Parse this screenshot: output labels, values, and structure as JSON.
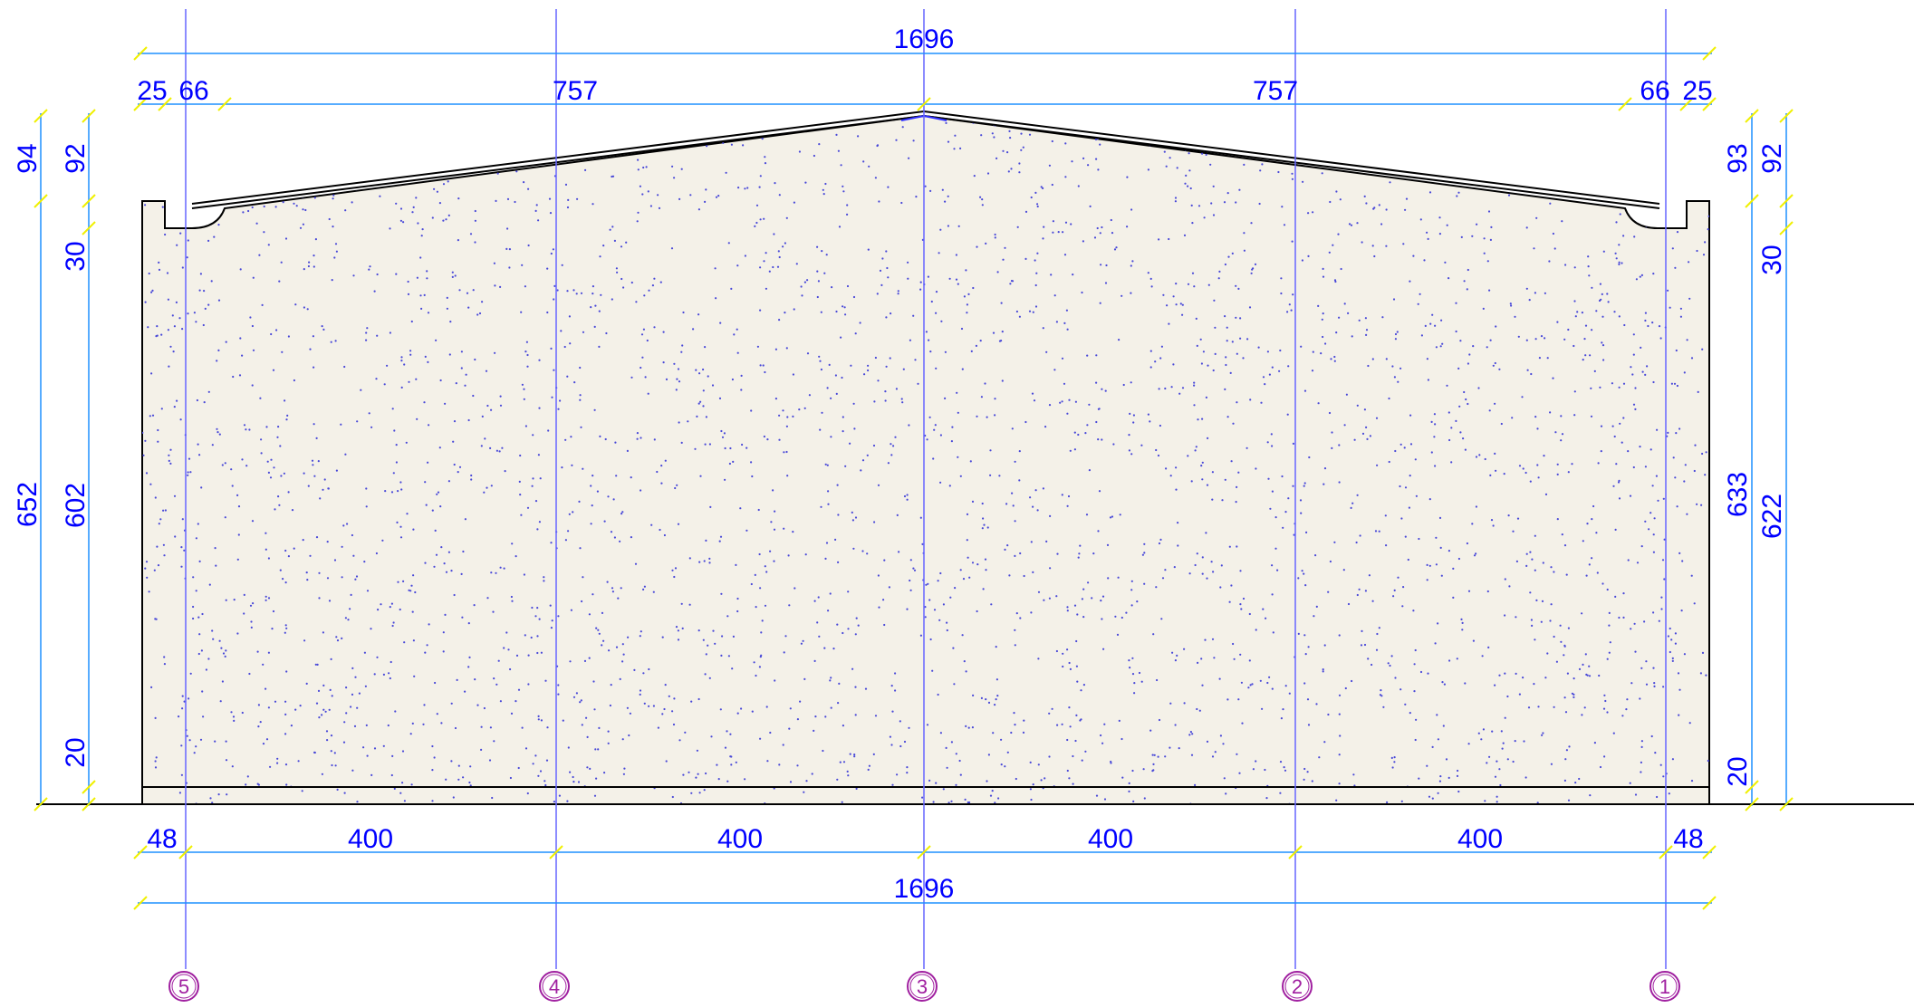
{
  "colors": {
    "dimension": "#0000ff",
    "dimension_line": "#1e90ff",
    "tick": "#f0f000",
    "grid_line": "#6666ff",
    "bubble": "#a020a0",
    "wall_fill": "#f4f1e8",
    "outline": "#000000"
  },
  "dims_top": {
    "overall": "1696",
    "left_25": "25",
    "left_66": "66",
    "mid_left_757": "757",
    "mid_right_757": "757",
    "right_66": "66",
    "right_25": "25"
  },
  "dims_bottom": {
    "left_48": "48",
    "bay1": "400",
    "bay2": "400",
    "bay3": "400",
    "bay4": "400",
    "right_48": "48",
    "overall": "1696"
  },
  "dims_left": {
    "outer_94": "94",
    "outer_652": "652",
    "inner_92": "92",
    "inner_30": "30",
    "inner_602": "602",
    "inner_20": "20"
  },
  "dims_right": {
    "inner_93": "93",
    "inner_633": "633",
    "inner_20": "20",
    "outer_92": "92",
    "outer_30": "30",
    "outer_622": "622"
  },
  "grid_bubbles": [
    "5",
    "4",
    "3",
    "2",
    "1"
  ]
}
